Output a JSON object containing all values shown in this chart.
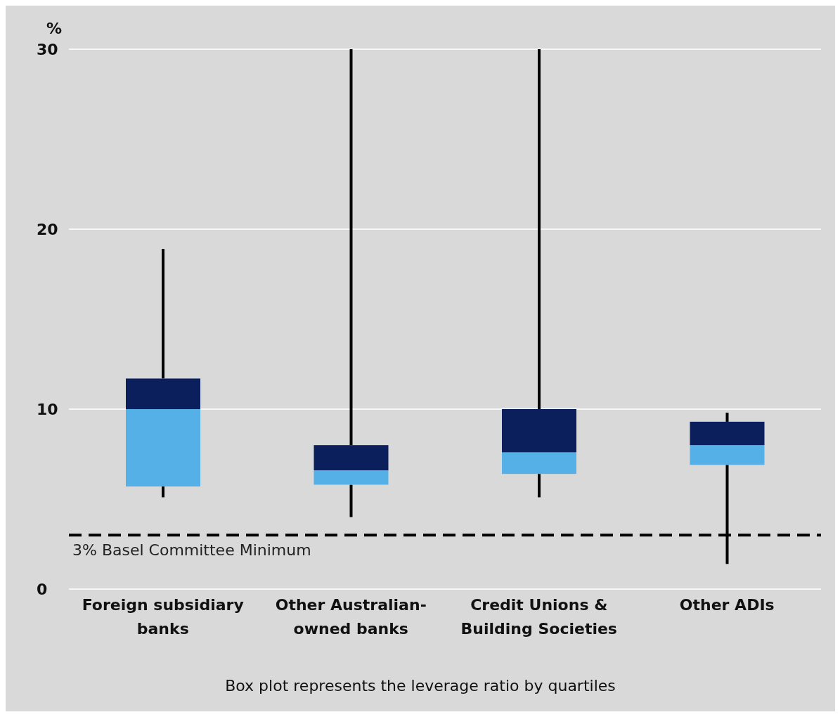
{
  "chart_data": {
    "type": "box",
    "ylabel": "%",
    "categories": [
      "Foreign subsidiary banks",
      "Other Australian-owned banks",
      "Credit Unions & Building Societies",
      "Other ADIs"
    ],
    "boxes": [
      {
        "low": 5.1,
        "q1": 5.7,
        "median": 10.0,
        "q3": 11.7,
        "high": 18.9
      },
      {
        "low": 4.0,
        "q1": 5.8,
        "median": 6.6,
        "q3": 8.0,
        "high": 30
      },
      {
        "low": 5.1,
        "q1": 6.4,
        "median": 7.6,
        "q3": 10.0,
        "high": 30
      },
      {
        "low": 1.4,
        "q1": 6.9,
        "median": 8.0,
        "q3": 9.3,
        "high": 9.8
      }
    ],
    "colors": [
      [
        "#56b0e8",
        "#0a1f5c"
      ],
      [
        "#56b0e8",
        "#0a1f5c"
      ],
      [
        "#56b0e8",
        "#0a1f5c"
      ],
      [
        "#56b0e8",
        "#0a1f5c"
      ]
    ],
    "ylim": [
      0,
      30
    ],
    "yticks": [
      0,
      10,
      20,
      30
    ],
    "grid": "y",
    "ref_lines": [
      {
        "axis": "y",
        "value": 3,
        "label": "3% Basel Committee Minimum",
        "color": "#000000",
        "line_style": "dashed"
      }
    ],
    "annotations": [
      "Box plot represents the leverage ratio by quartiles"
    ]
  }
}
